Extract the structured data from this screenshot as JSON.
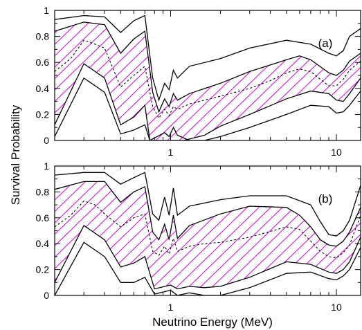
{
  "figure": {
    "ylabel": "Survival Probability",
    "xlabel": "Neutrino Energy (MeV)",
    "hatch_color": "#dd00dd",
    "line_color": "#000000"
  },
  "chart_data": [
    {
      "type": "line",
      "panel_label": "(a)",
      "xscale": "log",
      "xlim": [
        0.2,
        14
      ],
      "ylim": [
        0,
        1
      ],
      "x_ticks": [
        1,
        10
      ],
      "x_tick_labels": [
        "1",
        "10"
      ],
      "y_ticks": [
        0,
        0.2,
        0.4,
        0.6,
        0.8,
        1
      ],
      "y_tick_labels": [
        "0",
        "0.2",
        "0.4",
        "0.6",
        "0.8",
        "1"
      ],
      "series": [
        {
          "role": "outer-upper",
          "points": [
            [
              0.2,
              0.93
            ],
            [
              0.3,
              0.96
            ],
            [
              0.4,
              0.95
            ],
            [
              0.5,
              0.83
            ],
            [
              0.6,
              0.92
            ],
            [
              0.7,
              0.96
            ],
            [
              0.78,
              0.48
            ],
            [
              0.85,
              0.31
            ],
            [
              0.92,
              0.44
            ],
            [
              0.98,
              0.39
            ],
            [
              1.04,
              0.54
            ],
            [
              1.1,
              0.48
            ],
            [
              1.3,
              0.57
            ],
            [
              2,
              0.63
            ],
            [
              3,
              0.71
            ],
            [
              5,
              0.77
            ],
            [
              7,
              0.74
            ],
            [
              9,
              0.67
            ],
            [
              10,
              0.65
            ],
            [
              11,
              0.69
            ],
            [
              12,
              0.8
            ],
            [
              14,
              0.86
            ]
          ]
        },
        {
          "role": "hatched-upper",
          "points": [
            [
              0.2,
              0.84
            ],
            [
              0.3,
              0.91
            ],
            [
              0.4,
              0.89
            ],
            [
              0.5,
              0.67
            ],
            [
              0.6,
              0.78
            ],
            [
              0.7,
              0.84
            ],
            [
              0.78,
              0.37
            ],
            [
              0.85,
              0.22
            ],
            [
              0.92,
              0.32
            ],
            [
              0.98,
              0.26
            ],
            [
              1.04,
              0.36
            ],
            [
              1.1,
              0.31
            ],
            [
              1.3,
              0.36
            ],
            [
              2,
              0.44
            ],
            [
              3,
              0.53
            ],
            [
              5,
              0.62
            ],
            [
              6,
              0.65
            ],
            [
              7,
              0.62
            ],
            [
              9,
              0.52
            ],
            [
              10,
              0.5
            ],
            [
              11,
              0.54
            ],
            [
              12,
              0.61
            ],
            [
              14,
              0.67
            ]
          ]
        },
        {
          "role": "best-fit",
          "points": [
            [
              0.2,
              0.53
            ],
            [
              0.25,
              0.63
            ],
            [
              0.3,
              0.77
            ],
            [
              0.35,
              0.74
            ],
            [
              0.4,
              0.71
            ],
            [
              0.5,
              0.41
            ],
            [
              0.6,
              0.5
            ],
            [
              0.7,
              0.57
            ],
            [
              0.78,
              0.26
            ],
            [
              0.85,
              0.17
            ],
            [
              0.92,
              0.24
            ],
            [
              0.98,
              0.19
            ],
            [
              1.04,
              0.26
            ],
            [
              1.1,
              0.24
            ],
            [
              1.3,
              0.28
            ],
            [
              1.6,
              0.31
            ],
            [
              2,
              0.34
            ],
            [
              3,
              0.4
            ],
            [
              4,
              0.46
            ],
            [
              5,
              0.52
            ],
            [
              6,
              0.55
            ],
            [
              7,
              0.53
            ],
            [
              8,
              0.47
            ],
            [
              9,
              0.42
            ],
            [
              10,
              0.42
            ],
            [
              11,
              0.47
            ],
            [
              12,
              0.54
            ],
            [
              14,
              0.61
            ]
          ]
        },
        {
          "role": "hatched-lower",
          "points": [
            [
              0.2,
              0.12
            ],
            [
              0.3,
              0.59
            ],
            [
              0.4,
              0.48
            ],
            [
              0.5,
              0.12
            ],
            [
              0.6,
              0.18
            ],
            [
              0.7,
              0.27
            ],
            [
              0.75,
              0
            ],
            [
              1.2,
              0
            ],
            [
              1.6,
              0.04
            ],
            [
              2,
              0.11
            ],
            [
              3,
              0.2
            ],
            [
              5,
              0.32
            ],
            [
              7,
              0.38
            ],
            [
              9,
              0.36
            ],
            [
              10,
              0.31
            ],
            [
              11,
              0.3
            ],
            [
              12,
              0.36
            ],
            [
              14,
              0.48
            ]
          ]
        },
        {
          "role": "outer-lower",
          "points": [
            [
              0.2,
              0.03
            ],
            [
              0.3,
              0.48
            ],
            [
              0.4,
              0.37
            ],
            [
              0.5,
              0.05
            ],
            [
              0.6,
              0.08
            ],
            [
              0.7,
              0.12
            ],
            [
              0.75,
              0
            ],
            [
              0.92,
              0.06
            ],
            [
              0.98,
              0.03
            ],
            [
              1.04,
              0.1
            ],
            [
              1.1,
              0.04
            ],
            [
              1.3,
              0
            ],
            [
              1.6,
              0
            ],
            [
              2,
              0.03
            ],
            [
              3,
              0.1
            ],
            [
              5,
              0.2
            ],
            [
              7,
              0.27
            ],
            [
              9,
              0.26
            ],
            [
              10,
              0.21
            ],
            [
              11,
              0.22
            ],
            [
              12,
              0.27
            ],
            [
              14,
              0.38
            ]
          ]
        }
      ]
    },
    {
      "type": "line",
      "panel_label": "(b)",
      "xscale": "log",
      "xlim": [
        0.2,
        14
      ],
      "ylim": [
        0,
        1
      ],
      "x_ticks": [
        1,
        10
      ],
      "x_tick_labels": [
        "1",
        "10"
      ],
      "y_ticks": [
        0,
        0.2,
        0.4,
        0.6,
        0.8,
        1
      ],
      "y_tick_labels": [
        "0",
        "0.2",
        "0.4",
        "0.6",
        "0.8",
        "1"
      ],
      "series": [
        {
          "role": "outer-upper",
          "points": [
            [
              0.2,
              0.93
            ],
            [
              0.3,
              0.95
            ],
            [
              0.4,
              0.95
            ],
            [
              0.5,
              0.86
            ],
            [
              0.6,
              0.91
            ],
            [
              0.7,
              0.95
            ],
            [
              0.78,
              0.63
            ],
            [
              0.85,
              0.58
            ],
            [
              0.92,
              0.76
            ],
            [
              0.98,
              0.62
            ],
            [
              1.04,
              0.83
            ],
            [
              1.1,
              0.62
            ],
            [
              1.3,
              0.69
            ],
            [
              2,
              0.74
            ],
            [
              3,
              0.77
            ],
            [
              5,
              0.77
            ],
            [
              7,
              0.7
            ],
            [
              8,
              0.57
            ],
            [
              9,
              0.47
            ],
            [
              10,
              0.46
            ],
            [
              11,
              0.5
            ],
            [
              12,
              0.58
            ],
            [
              14,
              0.85
            ]
          ]
        },
        {
          "role": "hatched-upper",
          "points": [
            [
              0.2,
              0.82
            ],
            [
              0.3,
              0.88
            ],
            [
              0.4,
              0.88
            ],
            [
              0.5,
              0.72
            ],
            [
              0.6,
              0.8
            ],
            [
              0.7,
              0.84
            ],
            [
              0.78,
              0.49
            ],
            [
              0.85,
              0.43
            ],
            [
              0.92,
              0.55
            ],
            [
              0.98,
              0.43
            ],
            [
              1.04,
              0.62
            ],
            [
              1.1,
              0.44
            ],
            [
              1.3,
              0.54
            ],
            [
              2,
              0.63
            ],
            [
              3,
              0.69
            ],
            [
              5,
              0.68
            ],
            [
              6,
              0.62
            ],
            [
              7,
              0.53
            ],
            [
              8,
              0.43
            ],
            [
              9,
              0.39
            ],
            [
              10,
              0.38
            ],
            [
              11,
              0.42
            ],
            [
              12,
              0.49
            ],
            [
              14,
              0.68
            ]
          ]
        },
        {
          "role": "best-fit",
          "points": [
            [
              0.2,
              0.53
            ],
            [
              0.25,
              0.62
            ],
            [
              0.3,
              0.73
            ],
            [
              0.35,
              0.7
            ],
            [
              0.4,
              0.63
            ],
            [
              0.5,
              0.53
            ],
            [
              0.6,
              0.6
            ],
            [
              0.7,
              0.63
            ],
            [
              0.78,
              0.34
            ],
            [
              0.85,
              0.31
            ],
            [
              0.92,
              0.38
            ],
            [
              0.98,
              0.32
            ],
            [
              1.04,
              0.44
            ],
            [
              1.1,
              0.34
            ],
            [
              1.3,
              0.38
            ],
            [
              1.6,
              0.4
            ],
            [
              2,
              0.41
            ],
            [
              3,
              0.45
            ],
            [
              5,
              0.53
            ],
            [
              6,
              0.51
            ],
            [
              7,
              0.42
            ],
            [
              8,
              0.34
            ],
            [
              9,
              0.3
            ],
            [
              10,
              0.29
            ],
            [
              11,
              0.33
            ],
            [
              12,
              0.39
            ],
            [
              14,
              0.62
            ]
          ]
        },
        {
          "role": "hatched-lower",
          "points": [
            [
              0.2,
              0.1
            ],
            [
              0.3,
              0.54
            ],
            [
              0.4,
              0.43
            ],
            [
              0.5,
              0.22
            ],
            [
              0.6,
              0.25
            ],
            [
              0.7,
              0.3
            ],
            [
              0.8,
              0.05
            ],
            [
              1,
              0.08
            ],
            [
              1.1,
              0.05
            ],
            [
              1.3,
              0.07
            ],
            [
              1.6,
              0.06
            ],
            [
              2,
              0.07
            ],
            [
              3,
              0.14
            ],
            [
              5,
              0.26
            ],
            [
              7,
              0.24
            ],
            [
              9,
              0.18
            ],
            [
              10,
              0.17
            ],
            [
              11,
              0.2
            ],
            [
              12,
              0.26
            ],
            [
              14,
              0.45
            ]
          ]
        },
        {
          "role": "outer-lower",
          "points": [
            [
              0.2,
              0
            ],
            [
              0.3,
              0.41
            ],
            [
              0.4,
              0.3
            ],
            [
              0.5,
              0.1
            ],
            [
              0.6,
              0.1
            ],
            [
              0.7,
              0.14
            ],
            [
              0.8,
              0.01
            ],
            [
              1,
              0.04
            ],
            [
              1.1,
              0.0
            ],
            [
              1.3,
              0.02
            ],
            [
              1.6,
              0
            ],
            [
              2,
              0
            ],
            [
              3,
              0.06
            ],
            [
              5,
              0.17
            ],
            [
              7,
              0.18
            ],
            [
              9,
              0.13
            ],
            [
              10,
              0.12
            ],
            [
              11,
              0.15
            ],
            [
              12,
              0.2
            ],
            [
              14,
              0.37
            ]
          ]
        }
      ]
    }
  ]
}
